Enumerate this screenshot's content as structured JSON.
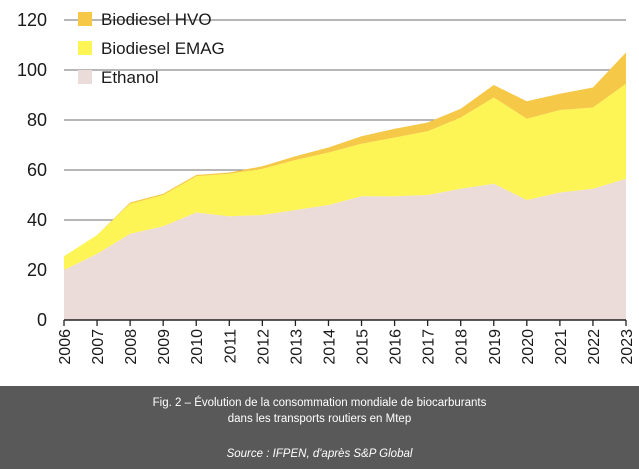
{
  "chart_data": {
    "type": "area",
    "stacked": true,
    "x": [
      2006,
      2007,
      2008,
      2009,
      2010,
      2011,
      2012,
      2013,
      2014,
      2015,
      2016,
      2017,
      2018,
      2019,
      2020,
      2021,
      2022,
      2023
    ],
    "x_tick_labels": [
      "2006",
      "2007",
      "2008",
      "2009",
      "2010",
      "2011",
      "2012",
      "2013",
      "2014",
      "2015",
      "2016",
      "2017",
      "2018",
      "2019",
      "2020",
      "2021",
      "2022",
      "2023"
    ],
    "ylim": [
      0,
      120
    ],
    "y_ticks": [
      0,
      20,
      40,
      60,
      80,
      100,
      120
    ],
    "y_tick_labels": [
      "0",
      "20",
      "40",
      "60",
      "80",
      "100",
      "120"
    ],
    "grid": "horizontal",
    "legend_position": "top-left",
    "series": [
      {
        "name": "Ethanol",
        "color": "#ecdcd9",
        "values": [
          20,
          26.5,
          34.5,
          37.5,
          43,
          41.5,
          42,
          44,
          46,
          49.5,
          49.5,
          50,
          52.5,
          54.5,
          48,
          51,
          52.5,
          56.5
        ]
      },
      {
        "name": "Biodiesel EMAG",
        "color": "#fdf455",
        "values": [
          5.5,
          7.5,
          12,
          12.5,
          14.5,
          17,
          18.5,
          20,
          21,
          21,
          23.5,
          25.5,
          28.5,
          34.5,
          32.5,
          33,
          32.5,
          38
        ]
      },
      {
        "name": "Biodiesel HVO",
        "color": "#f6c847",
        "values": [
          0,
          0,
          0.5,
          0.5,
          0.5,
          0.5,
          1,
          1.5,
          2,
          3,
          3.5,
          3.5,
          3.5,
          5,
          7,
          6.5,
          8,
          12.5
        ]
      }
    ],
    "legend_order": [
      "Biodiesel HVO",
      "Biodiesel EMAG",
      "Ethanol"
    ]
  },
  "caption": {
    "line1": "Fig. 2 – Évolution de la consommation mondiale de biocarburants",
    "line2": "dans les transports routiers en Mtep",
    "source": "Source : IFPEN, d'après S&P Global"
  },
  "colors": {
    "caption_band": "#595959",
    "grid": "#8c8c8c",
    "axis": "#222222",
    "text": "#1a1a1a"
  }
}
